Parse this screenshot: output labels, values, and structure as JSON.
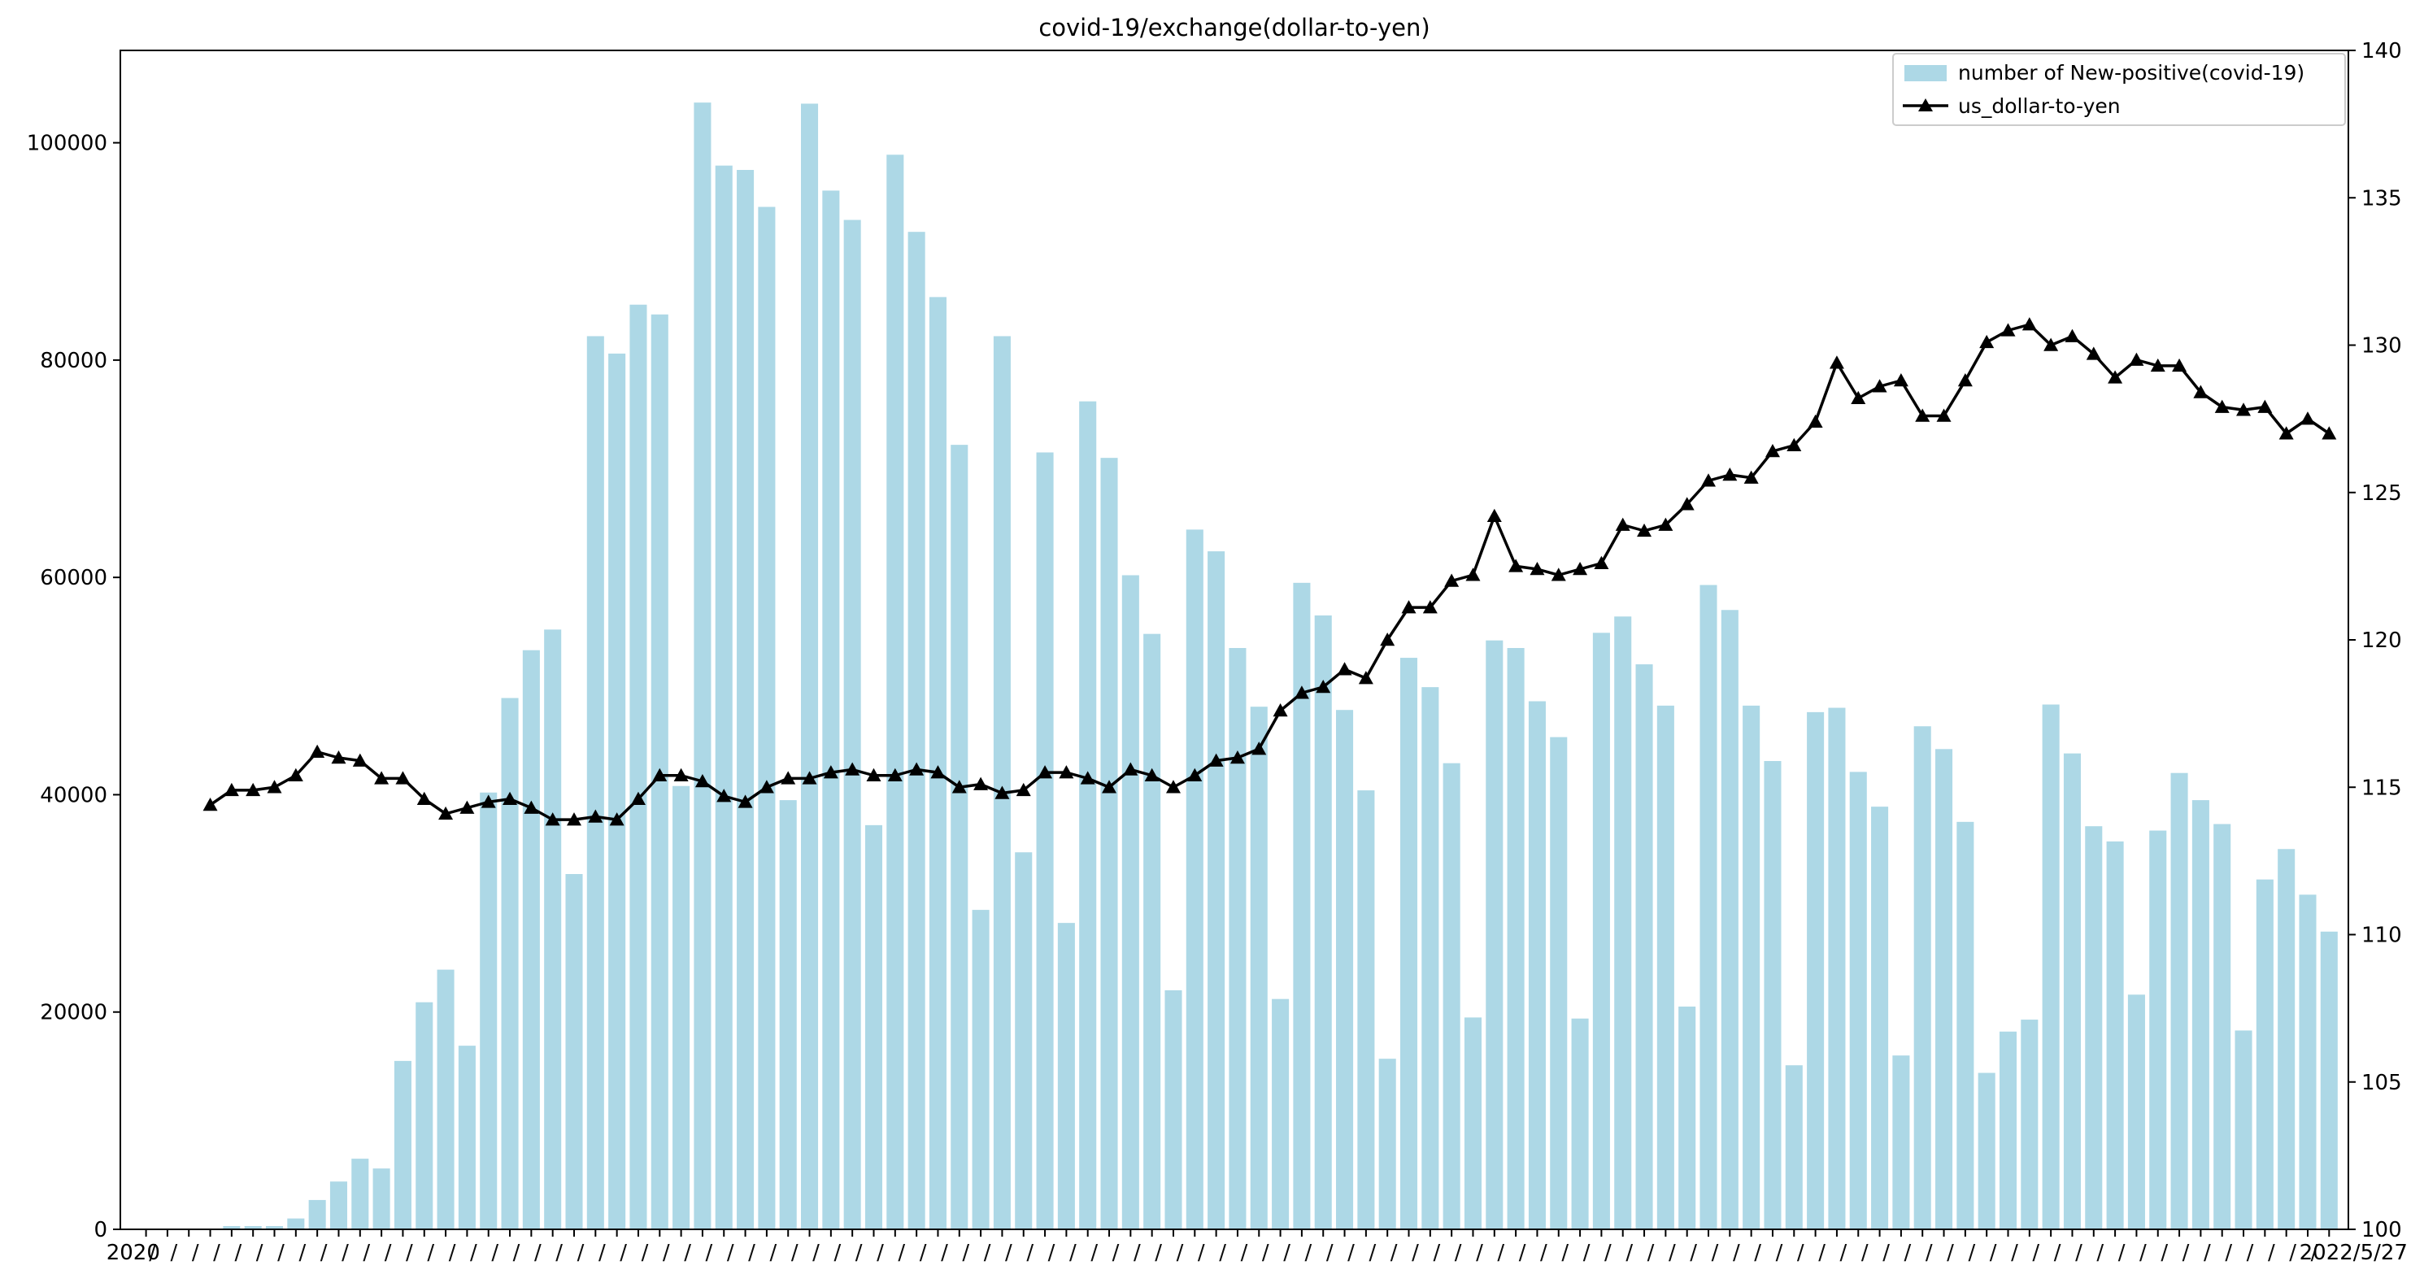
{
  "chart_data": {
    "type": "bar+line",
    "title": "covid-19/exchange(dollar-to-yen)",
    "xlabel": "",
    "ylabel_left": "",
    "ylabel_right": "",
    "x_tick_labels_visible": [
      "2020",
      "2022/5/27"
    ],
    "left_axis": {
      "ylim": [
        0,
        108500
      ],
      "ticks": [
        0,
        20000,
        40000,
        60000,
        80000,
        100000
      ]
    },
    "right_axis": {
      "ylim": [
        100,
        140
      ],
      "ticks": [
        100,
        105,
        110,
        115,
        120,
        125,
        130,
        135,
        140
      ]
    },
    "grid": false,
    "legend_position": "top-right",
    "series": [
      {
        "name": "number of New-positive(covid-19)",
        "type": "bar",
        "axis": "left",
        "color": "#add8e6",
        "values": [
          0,
          0,
          0,
          0,
          300,
          300,
          300,
          1000,
          2700,
          4400,
          6500,
          5600,
          15500,
          20900,
          23900,
          16900,
          40200,
          48900,
          53300,
          55200,
          32700,
          82200,
          80600,
          85100,
          84200,
          40800,
          103700,
          97900,
          97500,
          94100,
          39500,
          103600,
          95600,
          92900,
          37200,
          98900,
          91800,
          85800,
          72200,
          29400,
          82200,
          34700,
          71500,
          28200,
          76200,
          71000,
          60200,
          54800,
          22000,
          64400,
          62400,
          53500,
          48100,
          21200,
          59500,
          56500,
          47800,
          40400,
          15700,
          52600,
          49900,
          42900,
          19500,
          54200,
          53500,
          48600,
          45300,
          19400,
          54900,
          56400,
          52000,
          48200,
          20500,
          59300,
          57000,
          48200,
          43100,
          15100,
          47600,
          48000,
          42100,
          38900,
          16000,
          46300,
          44200,
          37500,
          14400,
          18200,
          19300,
          48300,
          43800,
          37100,
          35700,
          21600,
          36700,
          42000,
          39500,
          37300,
          18300,
          32200,
          35000,
          30800,
          27400
        ]
      },
      {
        "name": "us_dollar-to-yen",
        "type": "line",
        "axis": "right",
        "color": "#000000",
        "marker": "triangle",
        "values": [
          null,
          null,
          null,
          114.4,
          114.9,
          114.9,
          115.0,
          115.4,
          116.2,
          116.0,
          115.9,
          115.3,
          115.3,
          114.6,
          114.1,
          114.3,
          114.5,
          114.6,
          114.3,
          113.9,
          113.9,
          114.0,
          113.9,
          114.6,
          115.4,
          115.4,
          115.2,
          114.7,
          114.5,
          115.0,
          115.3,
          115.3,
          115.5,
          115.6,
          115.4,
          115.4,
          115.6,
          115.5,
          115.0,
          115.1,
          114.8,
          114.9,
          115.5,
          115.5,
          115.3,
          115.0,
          115.6,
          115.4,
          115.0,
          115.4,
          115.9,
          116.0,
          116.3,
          117.6,
          118.2,
          118.4,
          119.0,
          118.7,
          120.0,
          121.1,
          121.1,
          122.0,
          122.2,
          124.2,
          122.5,
          122.4,
          122.2,
          122.4,
          122.6,
          123.9,
          123.7,
          123.9,
          124.6,
          125.4,
          125.6,
          125.5,
          126.4,
          126.6,
          127.4,
          129.4,
          128.2,
          128.6,
          128.8,
          127.6,
          127.6,
          128.8,
          130.1,
          130.5,
          130.7,
          130.0,
          130.3,
          129.7,
          128.9,
          129.5,
          129.3,
          129.3,
          128.4,
          127.9,
          127.8,
          127.9,
          127.0,
          127.5,
          127.0
        ]
      }
    ]
  }
}
